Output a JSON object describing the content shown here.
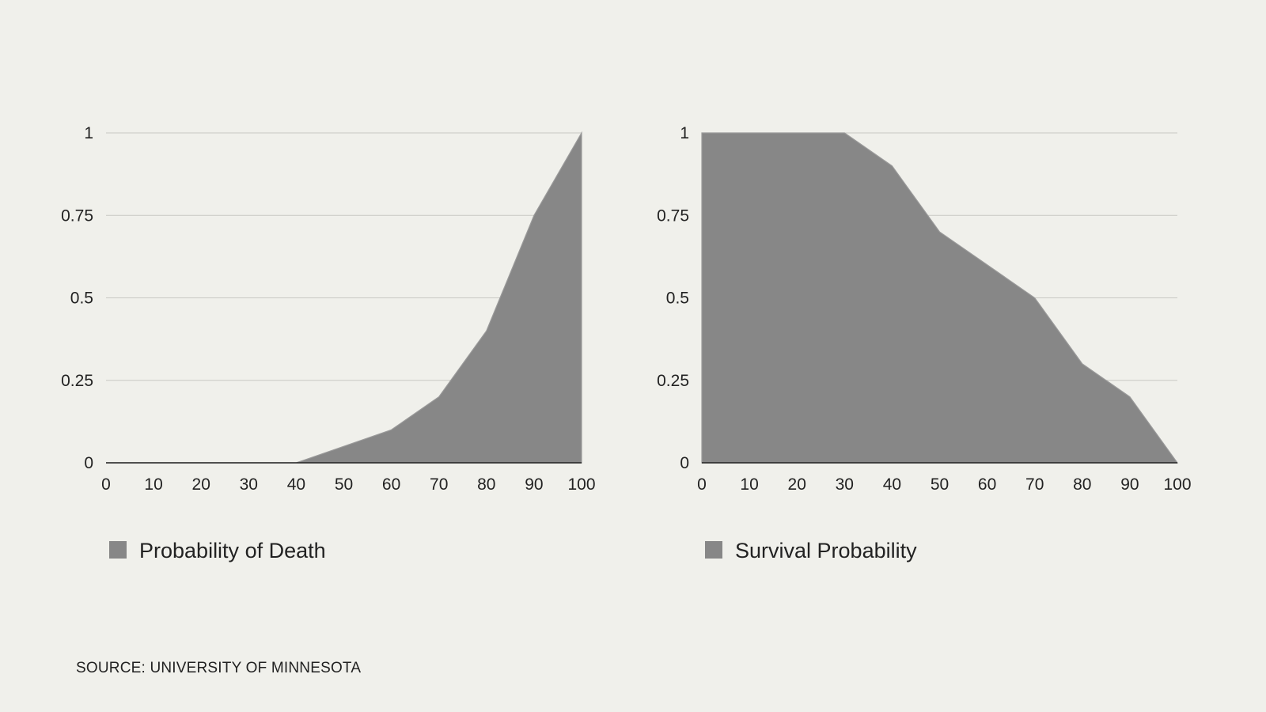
{
  "chart_data": [
    {
      "type": "area",
      "x": [
        0,
        10,
        20,
        30,
        40,
        50,
        60,
        70,
        80,
        90,
        100
      ],
      "series": [
        {
          "name": "Probability of Death",
          "values": [
            0,
            0,
            0,
            0,
            0,
            0.05,
            0.1,
            0.2,
            0.4,
            0.75,
            1
          ]
        }
      ],
      "x_ticks": [
        "0",
        "10",
        "20",
        "30",
        "40",
        "50",
        "60",
        "70",
        "80",
        "90",
        "100"
      ],
      "y_ticks": [
        "0",
        "0.25",
        "0.5",
        "0.75",
        "1"
      ],
      "y_tick_values": [
        0,
        0.25,
        0.5,
        0.75,
        1
      ],
      "xlim": [
        0,
        100
      ],
      "ylim": [
        0,
        1
      ],
      "grid": true,
      "legend_position": "bottom-left",
      "fill_color": "#878787",
      "grid_color": "#c8c8c3"
    },
    {
      "type": "area",
      "x": [
        0,
        10,
        20,
        30,
        40,
        50,
        60,
        70,
        80,
        90,
        100
      ],
      "series": [
        {
          "name": "Survival Probability",
          "values": [
            1,
            1,
            1,
            1,
            0.9,
            0.7,
            0.6,
            0.5,
            0.3,
            0.2,
            0
          ]
        }
      ],
      "x_ticks": [
        "0",
        "10",
        "20",
        "30",
        "40",
        "50",
        "60",
        "70",
        "80",
        "90",
        "100"
      ],
      "y_ticks": [
        "0",
        "0.25",
        "0.5",
        "0.75",
        "1"
      ],
      "y_tick_values": [
        0,
        0.25,
        0.5,
        0.75,
        1
      ],
      "xlim": [
        0,
        100
      ],
      "ylim": [
        0,
        1
      ],
      "grid": true,
      "legend_position": "bottom-left",
      "fill_color": "#878787",
      "grid_color": "#c8c8c3"
    }
  ],
  "source": "SOURCE: UNIVERSITY OF MINNESOTA",
  "colors": {
    "background": "#f0f0eb",
    "text": "#222222",
    "axis": "#222222"
  }
}
